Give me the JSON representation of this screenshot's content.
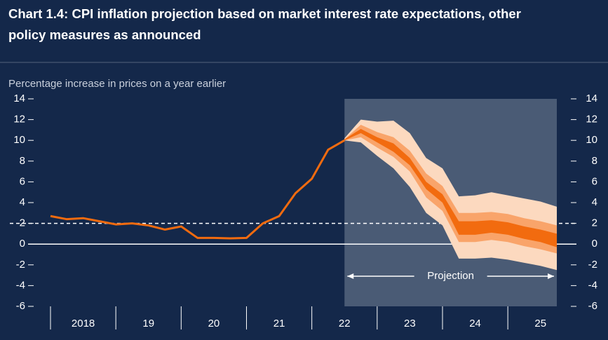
{
  "chart_data": {
    "type": "fan",
    "title_lines": [
      "Chart 1.4: CPI inflation projection based on market interest rate expectations, other",
      "policy measures as announced"
    ],
    "y_label": "Percentage increase in prices on a year earlier",
    "ylim": [
      -6,
      14
    ],
    "yticks": [
      -6,
      -4,
      -2,
      0,
      2,
      4,
      6,
      8,
      10,
      12,
      14
    ],
    "xlim": [
      2018,
      2025.9
    ],
    "xticks": [
      {
        "value": 2018,
        "label": "2018"
      },
      {
        "value": 2019,
        "label": "19"
      },
      {
        "value": 2020,
        "label": "20"
      },
      {
        "value": 2021,
        "label": "21"
      },
      {
        "value": 2022,
        "label": "22"
      },
      {
        "value": 2023,
        "label": "23"
      },
      {
        "value": 2024,
        "label": "24"
      },
      {
        "value": 2025,
        "label": "25"
      }
    ],
    "target": 2,
    "projection": {
      "label": "Projection",
      "start": 2022.5,
      "end": 2025.75,
      "color": "#4a5b75"
    },
    "series": [
      {
        "color": "#f26b0f",
        "x": [
          2018,
          2018.25,
          2018.5,
          2018.75,
          2019,
          2019.25,
          2019.5,
          2019.75,
          2020,
          2020.25,
          2020.5,
          2020.75,
          2021,
          2021.25,
          2021.5,
          2021.75,
          2022,
          2022.25,
          2022.5
        ],
        "values": [
          2.7,
          2.4,
          2.5,
          2.2,
          1.9,
          2.0,
          1.8,
          1.4,
          1.7,
          0.6,
          0.6,
          0.55,
          0.6,
          2.0,
          2.7,
          4.9,
          6.3,
          9.1,
          10.0
        ]
      }
    ],
    "fan_x": [
      2022.5,
      2022.75,
      2023,
      2023.25,
      2023.5,
      2023.75,
      2024,
      2024.25,
      2024.5,
      2024.75,
      2025,
      2025.25,
      2025.5,
      2025.75
    ],
    "bands": [
      {
        "color": "#fcd9bf",
        "upper": [
          10.2,
          12.0,
          11.8,
          11.9,
          10.7,
          8.3,
          7.3,
          4.6,
          4.7,
          5.0,
          4.7,
          4.4,
          4.1,
          3.6
        ],
        "lower": [
          10.0,
          9.8,
          8.5,
          7.3,
          5.5,
          3.0,
          1.8,
          -1.4,
          -1.4,
          -1.3,
          -1.5,
          -1.8,
          -2.1,
          -2.5
        ]
      },
      {
        "color": "#f9a46a",
        "upper": [
          10.1,
          11.5,
          10.8,
          10.3,
          9.0,
          6.8,
          5.6,
          3.0,
          3.0,
          3.1,
          2.9,
          2.5,
          2.2,
          1.8
        ],
        "lower": [
          10.0,
          10.3,
          9.3,
          8.4,
          7.0,
          4.5,
          3.2,
          0.2,
          0.2,
          0.4,
          0.2,
          -0.2,
          -0.5,
          -0.9
        ]
      },
      {
        "color": "#f26b0f",
        "upper": [
          10.1,
          11.1,
          10.3,
          9.7,
          8.3,
          6.0,
          4.8,
          2.2,
          2.2,
          2.3,
          2.1,
          1.7,
          1.4,
          1.0
        ],
        "lower": [
          10.0,
          10.7,
          9.8,
          8.9,
          7.6,
          5.3,
          4.0,
          0.9,
          0.9,
          1.1,
          0.9,
          0.5,
          0.2,
          -0.3
        ]
      }
    ]
  }
}
